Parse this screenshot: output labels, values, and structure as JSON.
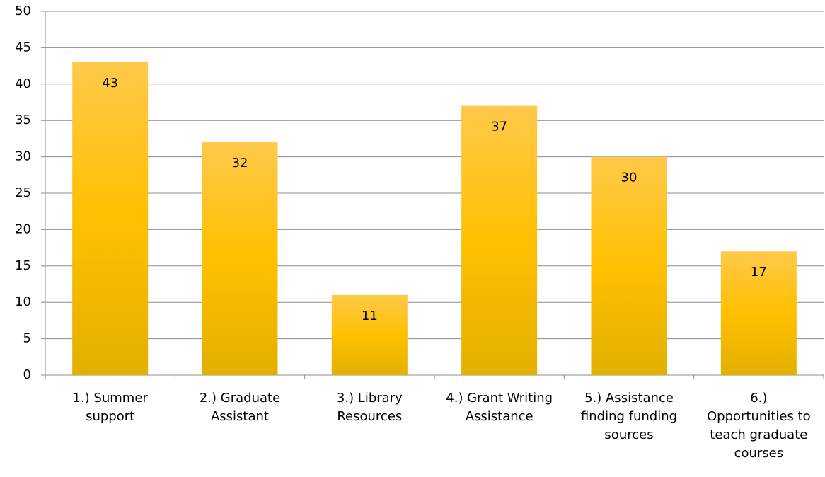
{
  "chart_data": {
    "type": "bar",
    "categories": [
      "1.) Summer\nsupport",
      "2.) Graduate\nAssistant",
      "3.) Library\nResources",
      "4.) Grant Writing\nAssistance",
      "5.)  Assistance\nfinding funding\nsources",
      "6.)\nOpportunities to\nteach graduate\ncourses"
    ],
    "values": [
      43,
      32,
      11,
      37,
      30,
      17
    ],
    "color": "#FFC000",
    "ylim": [
      0,
      50
    ],
    "yticks": [
      0,
      5,
      10,
      15,
      20,
      25,
      30,
      35,
      40,
      45,
      50
    ],
    "grid": true
  }
}
